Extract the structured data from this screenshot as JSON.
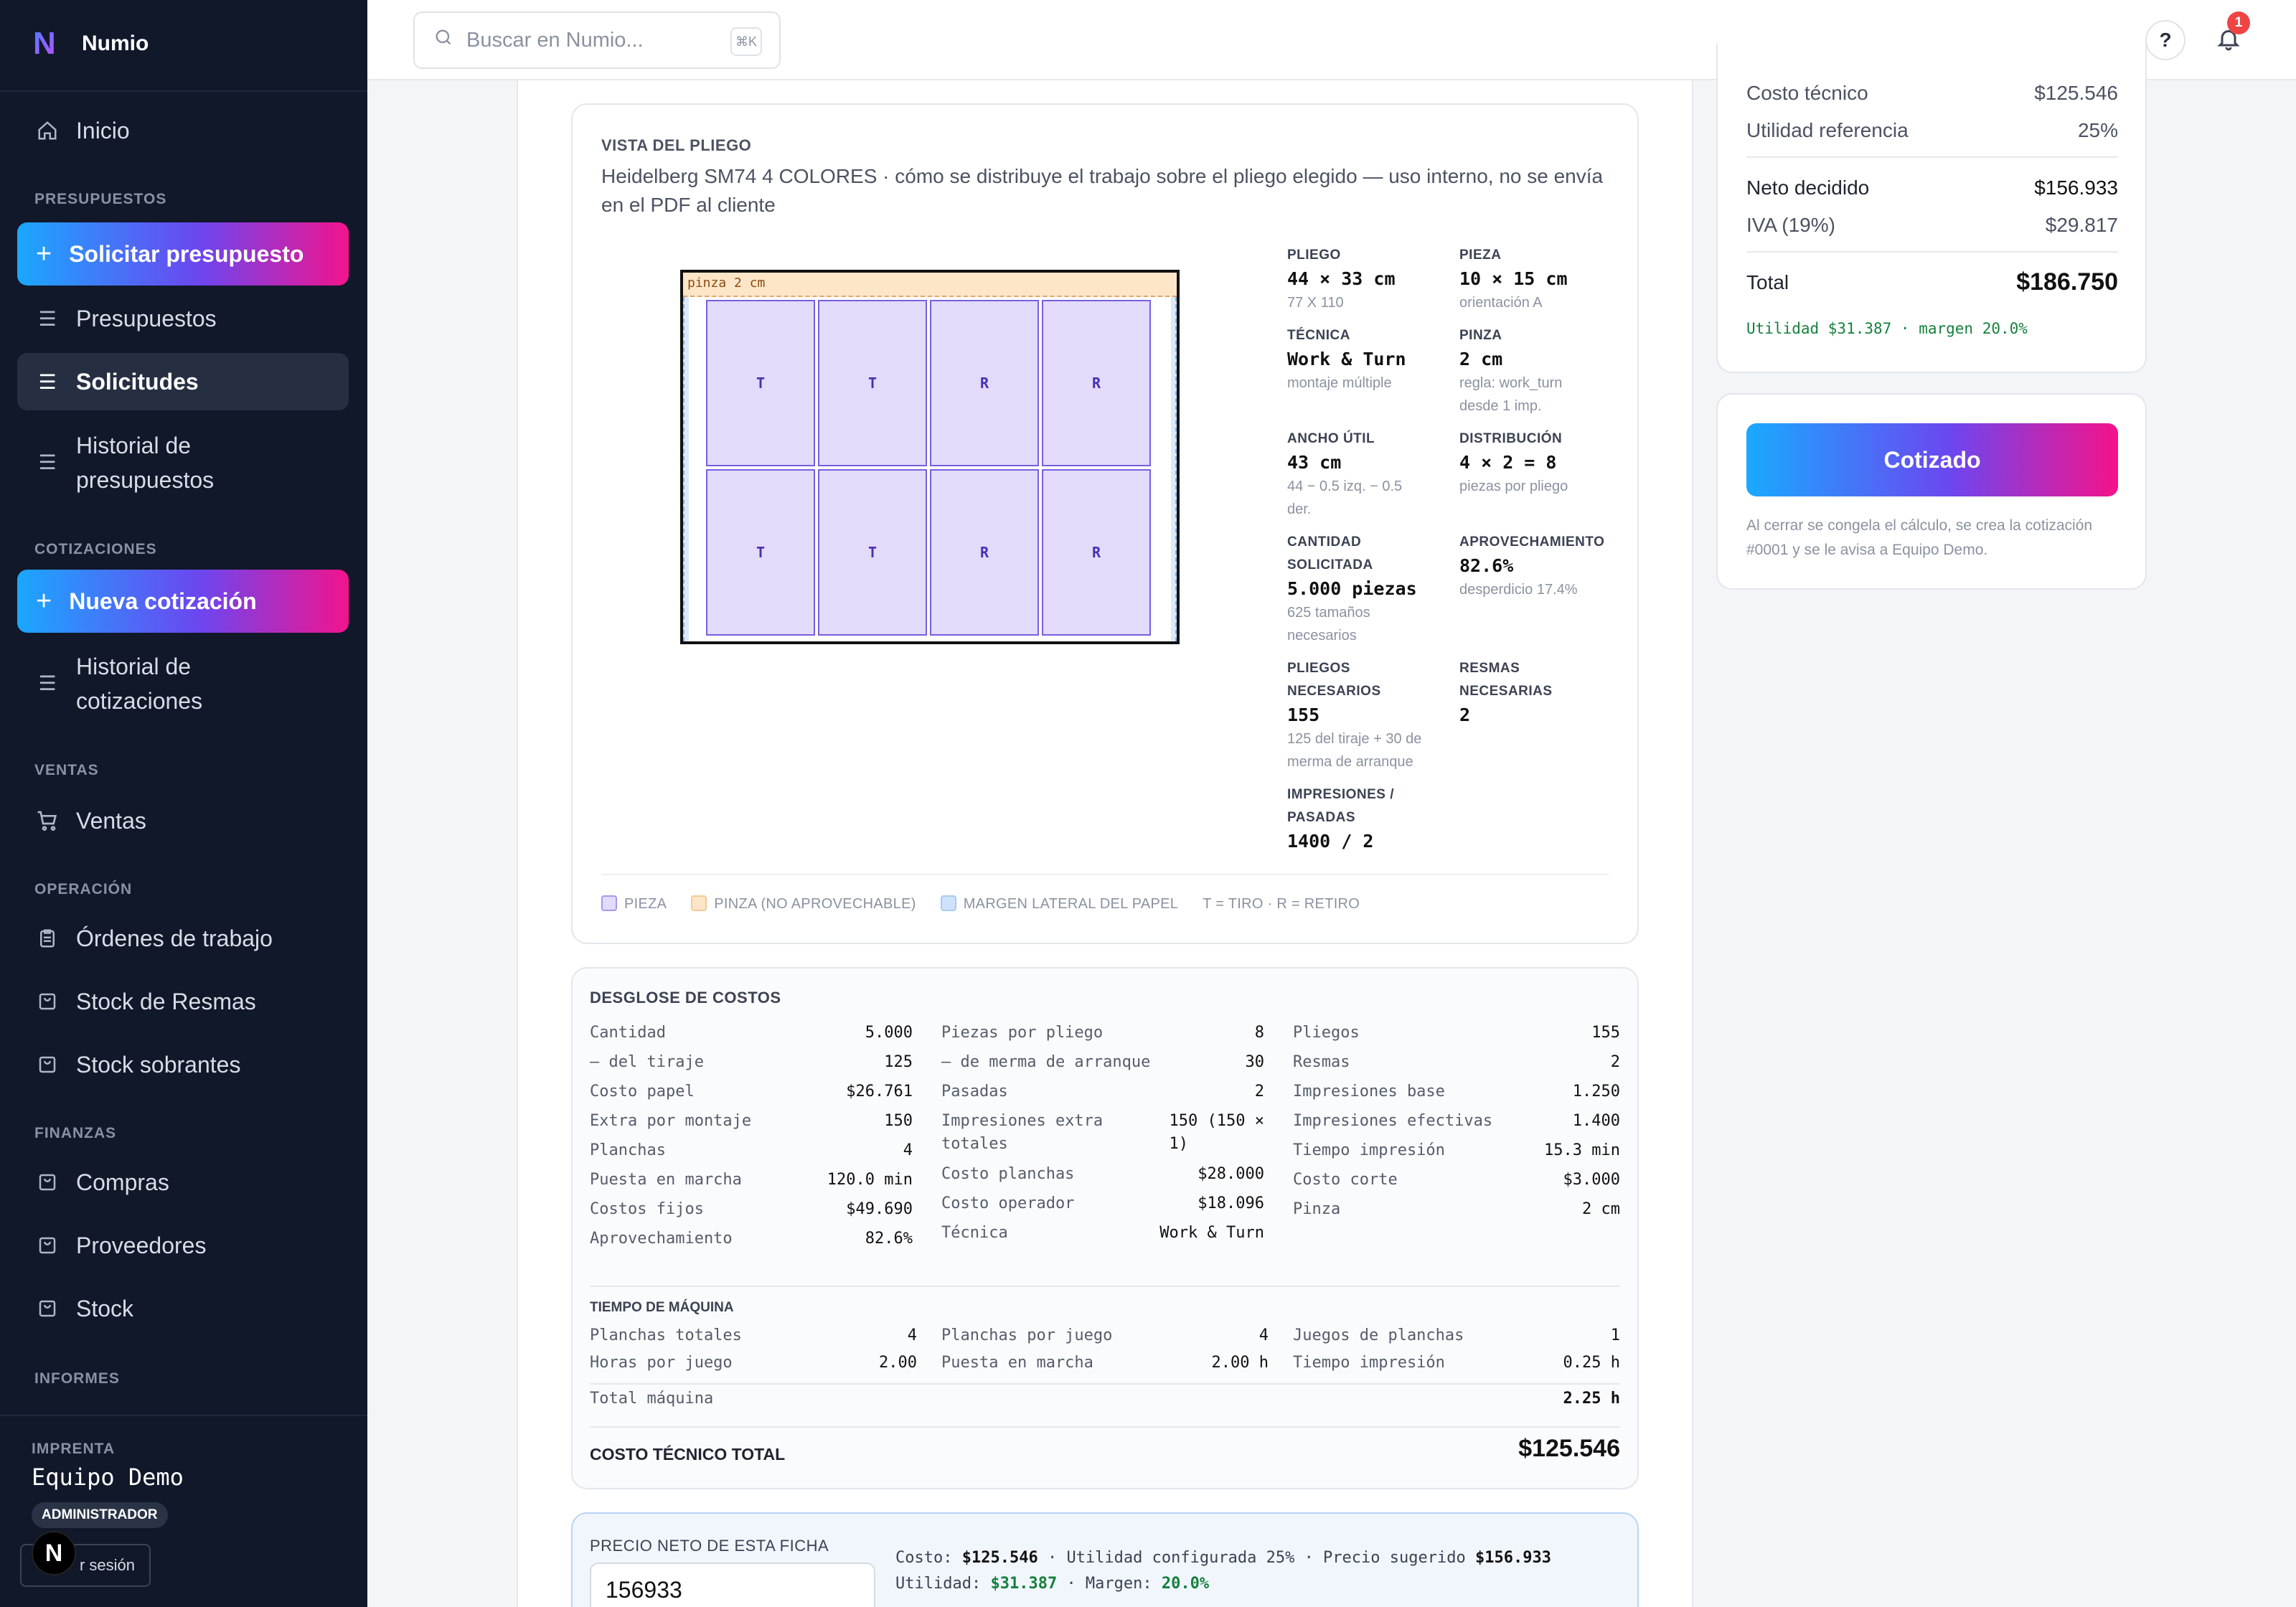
{
  "brand": {
    "logo": "N",
    "name": "Numio"
  },
  "sidebar": {
    "inicio": "Inicio",
    "sections": {
      "presupuestos": "PRESUPUESTOS",
      "cotizaciones": "COTIZACIONES",
      "ventas": "VENTAS",
      "operacion": "OPERACIÓN",
      "finanzas": "FINANZAS",
      "informes": "INFORMES"
    },
    "solicitar": "Solicitar presupuesto",
    "presupuestos": "Presupuestos",
    "solicitudes": "Solicitudes",
    "historial_presupuestos_1": "Historial de",
    "historial_presupuestos_2": "presupuestos",
    "nueva_cotizacion": "Nueva cotización",
    "historial_cotizaciones_1": "Historial de",
    "historial_cotizaciones_2": "cotizaciones",
    "ventas": "Ventas",
    "ordenes": "Órdenes de trabajo",
    "stock_resmas": "Stock de Resmas",
    "stock_sobrantes": "Stock sobrantes",
    "compras": "Compras",
    "proveedores": "Proveedores",
    "stock": "Stock",
    "footer": {
      "label": "IMPRENTA",
      "user": "Equipo Demo",
      "role": "ADMINISTRADOR",
      "logout": "r sesión",
      "badge": "N"
    }
  },
  "topbar": {
    "search_placeholder": "Buscar en Numio...",
    "shortcut": "⌘K",
    "help": "?",
    "notifications": "1"
  },
  "pliego": {
    "title": "VISTA DEL PLIEGO",
    "description": "Heidelberg SM74 4 COLORES · cómo se distribuye el trabajo sobre el pliego elegido — uso interno, no se envía en el PDF al cliente",
    "pinza_label": "pinza 2 cm",
    "pieces": [
      "T",
      "T",
      "R",
      "R",
      "T",
      "T",
      "R",
      "R"
    ],
    "specs": {
      "pliego": {
        "label": "PLIEGO",
        "value": "44 × 33 cm",
        "sub": "77 X 110"
      },
      "pieza": {
        "label": "PIEZA",
        "value": "10 × 15 cm",
        "sub": "orientación A"
      },
      "tecnica": {
        "label": "TÉCNICA",
        "value": "Work & Turn",
        "sub": "montaje múltiple"
      },
      "pinza": {
        "label": "PINZA",
        "value": "2 cm",
        "sub1": "regla: work_turn",
        "sub2": "desde 1 imp."
      },
      "ancho": {
        "label": "ANCHO ÚTIL",
        "value": "43 cm",
        "sub1": "44 − 0.5 izq. − 0.5",
        "sub2": "der."
      },
      "distribucion": {
        "label": "DISTRIBUCIÓN",
        "value": "4 × 2 = 8",
        "sub": "piezas por pliego"
      },
      "cantidad": {
        "label1": "CANTIDAD",
        "label2": "SOLICITADA",
        "value": "5.000 piezas",
        "sub1": "625 tamaños",
        "sub2": "necesarios"
      },
      "aprovechamiento": {
        "label": "APROVECHAMIENTO",
        "value": "82.6%",
        "sub": "desperdicio 17.4%"
      },
      "pliegos": {
        "label1": "PLIEGOS",
        "label2": "NECESARIOS",
        "value": "155",
        "sub1": "125 del tiraje + 30 de",
        "sub2": "merma de arranque"
      },
      "resmas": {
        "label1": "RESMAS",
        "label2": "NECESARIAS",
        "value": "2"
      },
      "impresiones": {
        "label1": "IMPRESIONES /",
        "label2": "PASADAS",
        "value": "1400 / 2"
      }
    },
    "legend": {
      "pieza": "PIEZA",
      "pinza": "PINZA (NO APROVECHABLE)",
      "margen": "MARGEN LATERAL DEL PAPEL",
      "codes": "T = TIRO · R = RETIRO"
    }
  },
  "desglose": {
    "title": "DESGLOSE DE COSTOS",
    "col1": [
      {
        "k": "Cantidad",
        "v": "5.000"
      },
      {
        "k": "— del tiraje",
        "v": "125"
      },
      {
        "k": "Costo papel",
        "v": "$26.761"
      },
      {
        "k": "Extra por montaje",
        "v": "150"
      },
      {
        "k": "Planchas",
        "v": "4"
      },
      {
        "k": "Puesta en marcha",
        "v": "120.0 min"
      },
      {
        "k": "Costos fijos",
        "v": "$49.690"
      },
      {
        "k": "Aprovechamiento",
        "v": "82.6%"
      }
    ],
    "col2": [
      {
        "k": "Piezas por pliego",
        "v": "8"
      },
      {
        "k": "— de merma de arranque",
        "v": "30"
      },
      {
        "k": "Pasadas",
        "v": "2"
      },
      {
        "k": "Impresiones extra",
        "k2": "totales",
        "v": "150 (150 ×",
        "v2": "1)"
      },
      {
        "k": "Costo planchas",
        "v": "$28.000"
      },
      {
        "k": "Costo operador",
        "v": "$18.096"
      },
      {
        "k": "Técnica",
        "v": "Work & Turn"
      }
    ],
    "col3": [
      {
        "k": "Pliegos",
        "v": "155"
      },
      {
        "k": "Resmas",
        "v": "2"
      },
      {
        "k": "Impresiones base",
        "v": "1.250"
      },
      {
        "k": "Impresiones efectivas",
        "v": "1.400"
      },
      {
        "k": "Tiempo impresión",
        "v": "15.3 min"
      },
      {
        "k": "Costo corte",
        "v": "$3.000"
      },
      {
        "k": "Pinza",
        "v": "2 cm"
      }
    ],
    "maquina_title": "TIEMPO DE MÁQUINA",
    "maquina": [
      {
        "k": "Planchas totales",
        "v": "4"
      },
      {
        "k": "Planchas por juego",
        "v": "4"
      },
      {
        "k": "Juegos de planchas",
        "v": "1"
      },
      {
        "k": "Horas por juego",
        "v": "2.00"
      },
      {
        "k": "Puesta en marcha",
        "v": "2.00 h"
      },
      {
        "k": "Tiempo impresión",
        "v": "0.25 h"
      }
    ],
    "total_maquina": {
      "k": "Total máquina",
      "v": "2.25 h"
    },
    "costo_total_label": "COSTO TÉCNICO TOTAL",
    "costo_total_value": "$125.546"
  },
  "precio": {
    "label": "PRECIO NETO DE ESTA FICHA",
    "value": "156933",
    "costo_label": "Costo:",
    "costo": "$125.546",
    "utilidad_cfg": "· Utilidad configurada 25% · Precio sugerido",
    "sugerido": "$156.933",
    "utilidad_label": "Utilidad:",
    "utilidad": "$31.387",
    "margen_label": "· Margen:",
    "margen": "20.0%"
  },
  "summary": {
    "costo_tecnico": {
      "k": "Costo técnico",
      "v": "$125.546"
    },
    "utilidad_ref": {
      "k": "Utilidad referencia",
      "v": "25%"
    },
    "neto": {
      "k": "Neto decidido",
      "v": "$156.933"
    },
    "iva": {
      "k": "IVA (19%)",
      "v": "$29.817"
    },
    "total": {
      "k": "Total",
      "v": "$186.750"
    },
    "util_line": "Utilidad $31.387 · margen 20.0%"
  },
  "cotizado": {
    "button": "Cotizado",
    "note": "Al cerrar se congela el cálculo, se crea la cotización #0001 y se le avisa a Equipo Demo."
  },
  "colors": {
    "accent_from": "#1aa8ff",
    "accent_to": "#f2138c",
    "sidebar_bg": "#111829",
    "success": "#15803d"
  }
}
